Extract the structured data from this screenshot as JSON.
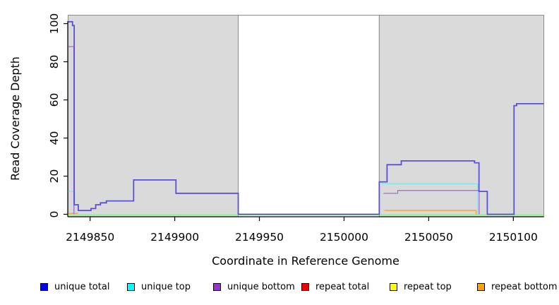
{
  "chart_data": {
    "type": "line",
    "title": "",
    "xlabel": "Coordinate in Reference Genome",
    "ylabel": "Read Coverage Depth",
    "x_domain": [
      2149837,
      2150118
    ],
    "y_domain": [
      0,
      104.5
    ],
    "x_ticks": [
      2149850,
      2149900,
      2149950,
      2150000,
      2150050,
      2150100
    ],
    "x_tick_labels": [
      "2149850",
      "2149900",
      "2149950",
      "2150000",
      "2150050",
      "2150100"
    ],
    "y_ticks": [
      0,
      20,
      40,
      60,
      80,
      100
    ],
    "y_tick_labels": [
      "0",
      "20",
      "40",
      "60",
      "80",
      "100"
    ],
    "grid": false,
    "legend_position": "bottom",
    "background_regions": [
      {
        "from": 2149837,
        "to": 2149937.5,
        "fill": "#DADADA",
        "border": "#8C8C8C",
        "meaning": "shaded-region"
      },
      {
        "from": 2149937.5,
        "to": 2150020.8,
        "fill": "#FFFFFF",
        "border": "#8C8C8C",
        "meaning": "white-gap-region"
      },
      {
        "from": 2150020.8,
        "to": 2150118,
        "fill": "#DADADA",
        "border": "#8C8C8C",
        "meaning": "shaded-region"
      }
    ],
    "zero_line": {
      "value": 0,
      "color": "#90EE90"
    },
    "series": [
      {
        "name": "repeat bottom",
        "color": "#FFA028",
        "width": 1.4,
        "steps": [
          [
            2149837,
            0.5
          ],
          [
            2149842.9,
            0.5
          ],
          [
            2149843,
            null
          ],
          [
            2150023.8,
            2
          ],
          [
            2150078,
            0
          ]
        ]
      },
      {
        "name": "unique top",
        "color": "#80E6E2",
        "width": 1.4,
        "steps": [
          [
            2149837,
            12
          ],
          [
            2149840.8,
            0
          ],
          [
            2149841.2,
            null
          ],
          [
            2150021.9,
            16
          ],
          [
            2150079,
            0
          ]
        ]
      },
      {
        "name": "unique bottom",
        "color": "#AE74DB",
        "width": 1.4,
        "steps": [
          [
            2149837,
            88
          ],
          [
            2149840.4,
            0
          ],
          [
            2149841,
            null
          ],
          [
            2150023.3,
            11
          ],
          [
            2150031.7,
            12.5
          ],
          [
            2150079.8,
            0
          ]
        ]
      },
      {
        "name": "unique total",
        "color": "#5A50D8",
        "width": 1.8,
        "steps": [
          [
            2149837,
            101
          ],
          [
            2149839.6,
            99
          ],
          [
            2149840.6,
            5
          ],
          [
            2149843,
            2
          ],
          [
            2149850.5,
            3
          ],
          [
            2149853.3,
            5
          ],
          [
            2149856.1,
            6
          ],
          [
            2149859.6,
            7
          ],
          [
            2149875.7,
            18
          ],
          [
            2149900.7,
            11
          ],
          [
            2149937.5,
            0
          ],
          [
            2150020.8,
            17
          ],
          [
            2150025.4,
            26
          ],
          [
            2150033.8,
            28
          ],
          [
            2150077.1,
            27
          ],
          [
            2150079.7,
            12
          ],
          [
            2150084.6,
            0
          ],
          [
            2150100.4,
            57
          ],
          [
            2150101.9,
            58
          ],
          [
            2150118,
            58
          ]
        ]
      },
      {
        "name": "repeat total",
        "color": "#EE0000",
        "width": 1.4,
        "steps": []
      },
      {
        "name": "repeat top",
        "color": "#FFFF00",
        "width": 1.4,
        "steps": []
      }
    ],
    "legend": [
      {
        "label": "unique total",
        "color": "#0000EE"
      },
      {
        "label": "unique top",
        "color": "#00FFFF"
      },
      {
        "label": "unique bottom",
        "color": "#9A32CD"
      },
      {
        "label": "repeat total",
        "color": "#EE0000"
      },
      {
        "label": "repeat top",
        "color": "#FFFF00"
      },
      {
        "label": "repeat bottom",
        "color": "#FFA500"
      }
    ]
  }
}
